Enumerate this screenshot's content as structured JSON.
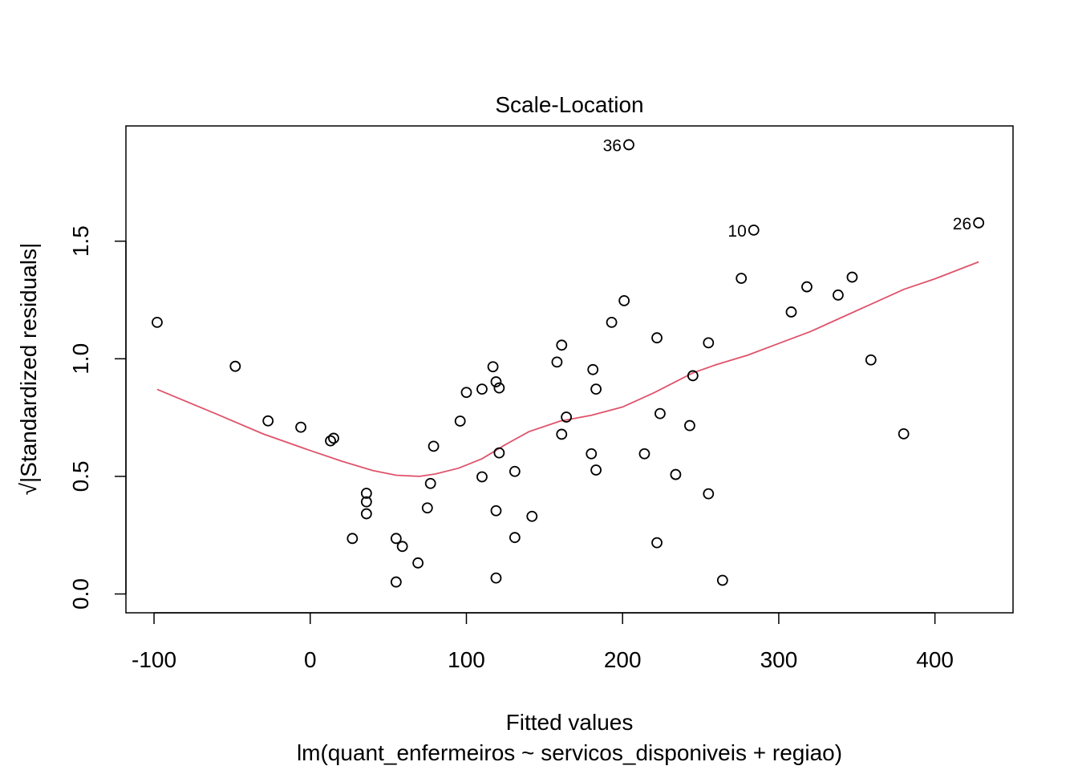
{
  "chart_data": {
    "type": "scatter",
    "title": "Scale-Location",
    "xlabel": "Fitted values",
    "subtitle": "lm(quant_enfermeiros ~ servicos_disponiveis + regiao)",
    "ylabel": "√|Standardized residuals|",
    "xlim": [
      -118,
      450
    ],
    "ylim": [
      -0.08,
      1.99
    ],
    "xticks": [
      -100,
      0,
      100,
      200,
      300,
      400
    ],
    "xtick_labels": [
      "-100",
      "0",
      "100",
      "200",
      "300",
      "400"
    ],
    "yticks": [
      0.0,
      0.5,
      1.0,
      1.5
    ],
    "ytick_labels": [
      "0.0",
      "0.5",
      "1.0",
      "1.5"
    ],
    "grid": false,
    "colors": {
      "points": "#000000",
      "smooth": "#DF536B"
    },
    "points": [
      {
        "x": -98,
        "y": 1.155
      },
      {
        "x": -48,
        "y": 0.968
      },
      {
        "x": -27,
        "y": 0.736
      },
      {
        "x": -6,
        "y": 0.709
      },
      {
        "x": 13,
        "y": 0.651
      },
      {
        "x": 15,
        "y": 0.662
      },
      {
        "x": 27,
        "y": 0.236
      },
      {
        "x": 36,
        "y": 0.428
      },
      {
        "x": 36,
        "y": 0.392
      },
      {
        "x": 36,
        "y": 0.341
      },
      {
        "x": 55,
        "y": 0.236
      },
      {
        "x": 55,
        "y": 0.051
      },
      {
        "x": 59,
        "y": 0.202
      },
      {
        "x": 69,
        "y": 0.132
      },
      {
        "x": 75,
        "y": 0.366
      },
      {
        "x": 77,
        "y": 0.47
      },
      {
        "x": 79,
        "y": 0.628
      },
      {
        "x": 96,
        "y": 0.735
      },
      {
        "x": 100,
        "y": 0.857
      },
      {
        "x": 110,
        "y": 0.871
      },
      {
        "x": 110,
        "y": 0.498
      },
      {
        "x": 117,
        "y": 0.966
      },
      {
        "x": 119,
        "y": 0.902
      },
      {
        "x": 119,
        "y": 0.354
      },
      {
        "x": 119,
        "y": 0.068
      },
      {
        "x": 121,
        "y": 0.876
      },
      {
        "x": 121,
        "y": 0.6
      },
      {
        "x": 131,
        "y": 0.521
      },
      {
        "x": 131,
        "y": 0.24
      },
      {
        "x": 142,
        "y": 0.33
      },
      {
        "x": 158,
        "y": 0.986
      },
      {
        "x": 161,
        "y": 1.058
      },
      {
        "x": 161,
        "y": 0.679
      },
      {
        "x": 164,
        "y": 0.752
      },
      {
        "x": 180,
        "y": 0.596
      },
      {
        "x": 181,
        "y": 0.954
      },
      {
        "x": 183,
        "y": 0.871
      },
      {
        "x": 183,
        "y": 0.527
      },
      {
        "x": 193,
        "y": 1.155
      },
      {
        "x": 201,
        "y": 1.247
      },
      {
        "x": 204,
        "y": 1.91,
        "label": "36"
      },
      {
        "x": 214,
        "y": 0.596
      },
      {
        "x": 222,
        "y": 1.089
      },
      {
        "x": 222,
        "y": 0.218
      },
      {
        "x": 224,
        "y": 0.767
      },
      {
        "x": 234,
        "y": 0.508
      },
      {
        "x": 243,
        "y": 0.716
      },
      {
        "x": 245,
        "y": 0.928
      },
      {
        "x": 255,
        "y": 1.068
      },
      {
        "x": 255,
        "y": 0.426
      },
      {
        "x": 264,
        "y": 0.058
      },
      {
        "x": 276,
        "y": 1.342
      },
      {
        "x": 284,
        "y": 1.547,
        "label": "10"
      },
      {
        "x": 308,
        "y": 1.199
      },
      {
        "x": 318,
        "y": 1.306
      },
      {
        "x": 338,
        "y": 1.271
      },
      {
        "x": 347,
        "y": 1.347
      },
      {
        "x": 359,
        "y": 0.995
      },
      {
        "x": 380,
        "y": 0.681
      },
      {
        "x": 428,
        "y": 1.578,
        "label": "26"
      }
    ],
    "smooth_line": {
      "x": [
        -98,
        -60,
        -30,
        0,
        20,
        40,
        55,
        70,
        80,
        95,
        110,
        125,
        140,
        160,
        180,
        200,
        220,
        245,
        260,
        280,
        300,
        320,
        340,
        360,
        380,
        400,
        428
      ],
      "y": [
        0.87,
        0.765,
        0.68,
        0.61,
        0.565,
        0.525,
        0.505,
        0.5,
        0.51,
        0.535,
        0.575,
        0.635,
        0.69,
        0.735,
        0.76,
        0.795,
        0.855,
        0.94,
        0.975,
        1.015,
        1.065,
        1.115,
        1.175,
        1.235,
        1.295,
        1.34,
        1.412
      ]
    }
  }
}
